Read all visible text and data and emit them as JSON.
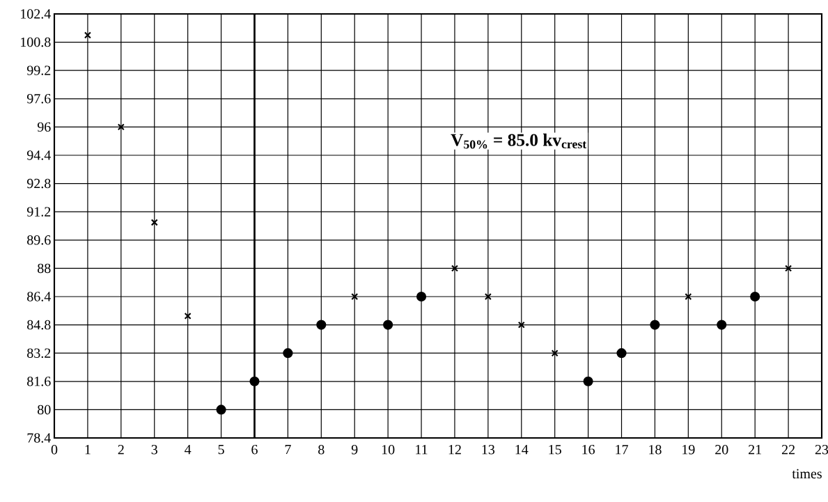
{
  "chart_data": {
    "type": "scatter",
    "xlabel": "times",
    "annotations": [
      "V$_{50%}$ = 85.0 kv$_{crest}$"
    ],
    "series": [
      {
        "color": "#000000",
        "marker": "cross",
        "x": [
          1,
          2,
          3,
          4,
          9,
          12,
          13,
          14,
          15,
          19,
          22
        ],
        "values": [
          101.2,
          96,
          90.6,
          85.3,
          86.4,
          88,
          86.4,
          84.8,
          83.2,
          86.4,
          88
        ]
      },
      {
        "color": "#000000",
        "marker": "circle",
        "x": [
          5,
          6,
          7,
          8,
          10,
          11,
          16,
          17,
          18,
          20,
          21
        ],
        "values": [
          80,
          81.6,
          83.2,
          84.8,
          84.8,
          86.4,
          81.6,
          83.2,
          84.8,
          84.8,
          86.4
        ]
      }
    ],
    "xlim": [
      0,
      23
    ],
    "ylim": [
      78.4,
      102.4
    ],
    "xticks": [
      0,
      1,
      2,
      3,
      4,
      5,
      6,
      7,
      8,
      9,
      10,
      11,
      12,
      13,
      14,
      15,
      16,
      17,
      18,
      19,
      20,
      21,
      22,
      23
    ],
    "yticks": [
      78.4,
      80,
      81.6,
      83.2,
      84.8,
      86.4,
      88,
      89.6,
      91.2,
      92.8,
      94.4,
      96,
      97.6,
      99.2,
      100.8,
      102.4
    ],
    "ref_lines": [
      {
        "axis": "x",
        "value": 6
      }
    ],
    "grid": true
  }
}
